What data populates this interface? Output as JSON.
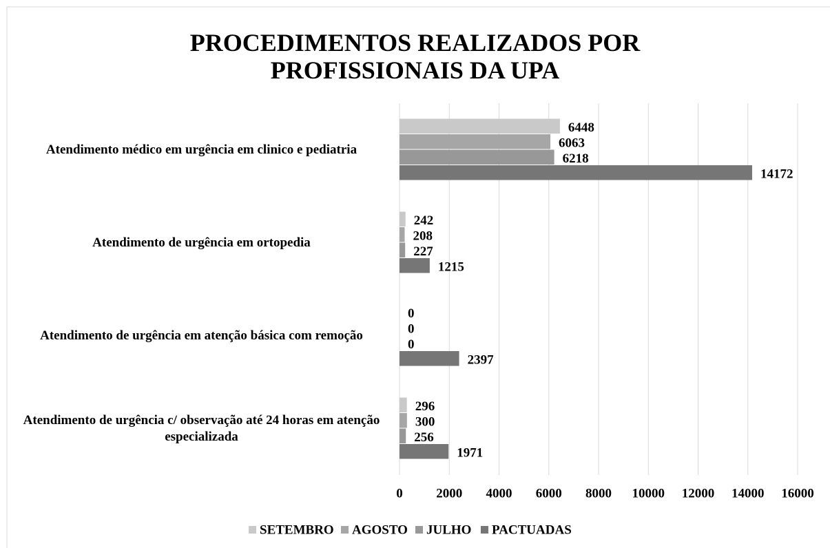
{
  "chart_data": {
    "type": "hbar",
    "title": "PROCEDIMENTOS REALIZADOS POR PROFISSIONAIS DA UPA",
    "categories": [
      "Atendimento médico em urgência em clinico e pediatria",
      "Atendimento de urgência em ortopedia",
      "Atendimento de urgência em atenção básica com remoção",
      "Atendimento de urgência c/ observação até 24 horas em atenção especializada"
    ],
    "series": [
      {
        "name": "SETEMBRO",
        "color": "#c9c9c9",
        "values": [
          6448,
          242,
          0,
          296
        ]
      },
      {
        "name": "AGOSTO",
        "color": "#a6a6a6",
        "values": [
          6063,
          208,
          0,
          300
        ]
      },
      {
        "name": "JULHO",
        "color": "#989898",
        "values": [
          6218,
          227,
          0,
          256
        ]
      },
      {
        "name": "PACTUADAS",
        "color": "#767676",
        "values": [
          14172,
          1215,
          2397,
          1971
        ]
      }
    ],
    "xlim": [
      0,
      16000
    ],
    "xticks": [
      0,
      2000,
      4000,
      6000,
      8000,
      10000,
      12000,
      14000,
      16000
    ],
    "grid": true,
    "legend": "bottom"
  }
}
